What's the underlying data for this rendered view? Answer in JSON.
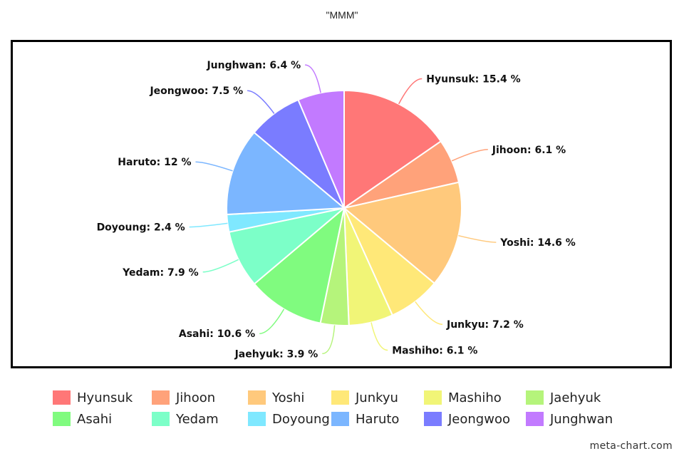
{
  "chart_data": {
    "type": "pie",
    "title": "\"MMM\"",
    "value_suffix": " %",
    "slices": [
      {
        "name": "Hyunsuk",
        "value": 15.4,
        "color": "#ff7777"
      },
      {
        "name": "Jihoon",
        "value": 6.1,
        "color": "#ffa27a"
      },
      {
        "name": "Yoshi",
        "value": 14.6,
        "color": "#ffc97c"
      },
      {
        "name": "Junkyu",
        "value": 7.2,
        "color": "#ffe878"
      },
      {
        "name": "Mashiho",
        "value": 6.1,
        "color": "#f1f577"
      },
      {
        "name": "Jaehyuk",
        "value": 3.9,
        "color": "#b5f47b"
      },
      {
        "name": "Asahi",
        "value": 10.6,
        "color": "#80fb7f"
      },
      {
        "name": "Yedam",
        "value": 7.9,
        "color": "#7cffc8"
      },
      {
        "name": "Doyoung",
        "value": 2.4,
        "color": "#7fe8ff"
      },
      {
        "name": "Haruto",
        "value": 12,
        "color": "#7bb6ff"
      },
      {
        "name": "Jeongwoo",
        "value": 7.5,
        "color": "#7a7cff"
      },
      {
        "name": "Junghwan",
        "value": 6.4,
        "color": "#c27aff"
      }
    ],
    "legend_position": "bottom"
  },
  "watermark": "meta-chart.com"
}
